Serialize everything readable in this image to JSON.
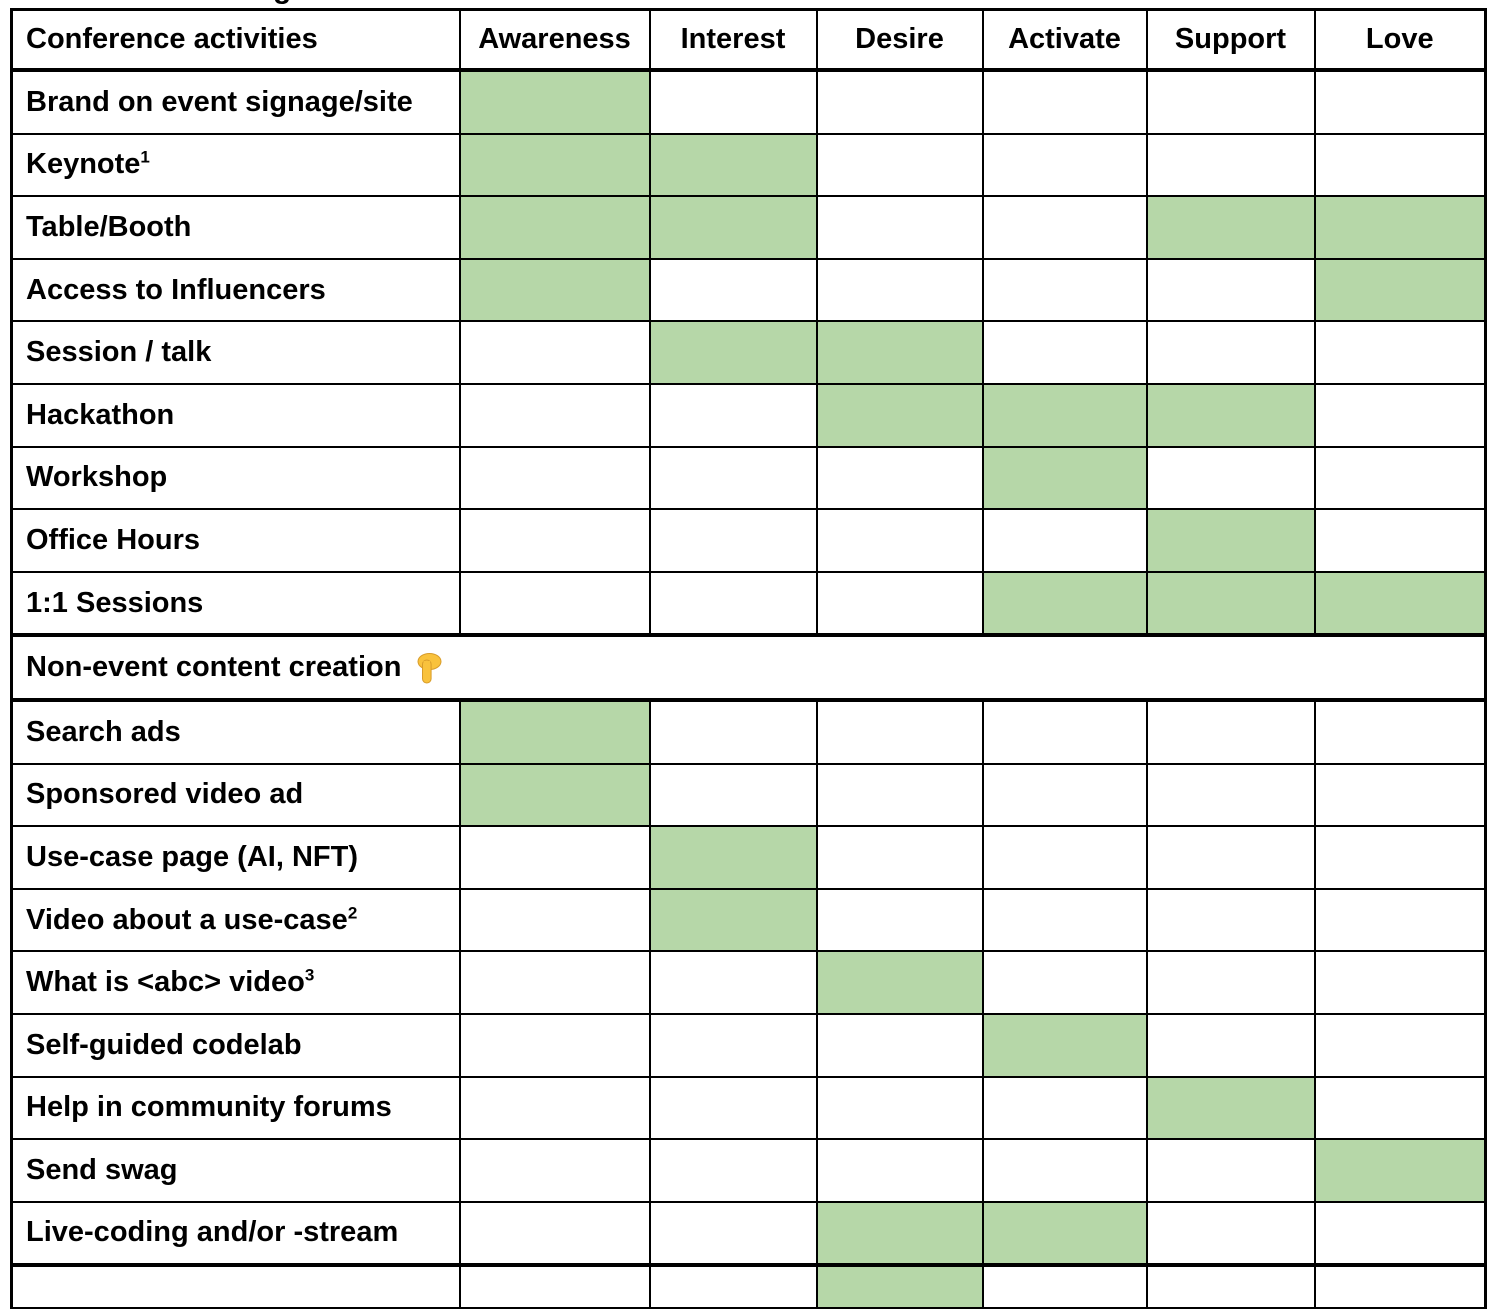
{
  "clipped_heading_fragment": {
    "visible_glyph": "g"
  },
  "colors": {
    "highlight_green": "#b6d7a8",
    "border": "#000000",
    "text": "#000000",
    "background": "#ffffff",
    "emoji_yellow": "#f9c23c",
    "emoji_outline": "#d89c2a"
  },
  "table": {
    "columns": [
      "Conference activities",
      "Awareness",
      "Interest",
      "Desire",
      "Activate",
      "Support",
      "Love"
    ],
    "column_keys": [
      "activities",
      "awareness",
      "interest",
      "desire",
      "activate",
      "support",
      "love"
    ],
    "rows": [
      {
        "label": "Brand on event signage/site",
        "highlights": [
          1
        ]
      },
      {
        "label": "Keynote",
        "sup": "1",
        "highlights": [
          1,
          2
        ]
      },
      {
        "label": "Table/Booth",
        "highlights": [
          1,
          2,
          5,
          6
        ]
      },
      {
        "label": "Access to Influencers",
        "highlights": [
          1,
          6
        ]
      },
      {
        "label": "Session / talk",
        "highlights": [
          2,
          3
        ]
      },
      {
        "label": "Hackathon",
        "highlights": [
          3,
          4,
          5
        ]
      },
      {
        "label": "Workshop",
        "highlights": [
          4
        ]
      },
      {
        "label": "Office Hours",
        "highlights": [
          5
        ]
      },
      {
        "label": "1:1 Sessions",
        "highlights": [
          4,
          5,
          6
        ]
      },
      {
        "label": "Non-event content creation",
        "section": true,
        "emoji": "👇",
        "emoji_name": "backhand-index-pointing-down",
        "highlights": []
      },
      {
        "label": "Search ads",
        "highlights": [
          1
        ]
      },
      {
        "label": "Sponsored video ad",
        "highlights": [
          1
        ]
      },
      {
        "label": "Use-case page (AI, NFT)",
        "highlights": [
          2
        ]
      },
      {
        "label": "Video about a use-case",
        "sup": "2",
        "highlights": [
          2
        ]
      },
      {
        "label": "What is <abc> video",
        "sup": "3",
        "highlights": [
          3
        ]
      },
      {
        "label": "Self-guided codelab",
        "highlights": [
          4
        ]
      },
      {
        "label": "Help in community forums",
        "highlights": [
          5
        ]
      },
      {
        "label": "Send swag",
        "highlights": [
          6
        ]
      },
      {
        "label": "Live-coding and/or -stream",
        "highlights": [
          3,
          4
        ]
      },
      {
        "label": "",
        "partial": true,
        "highlights": [
          3
        ]
      }
    ]
  }
}
